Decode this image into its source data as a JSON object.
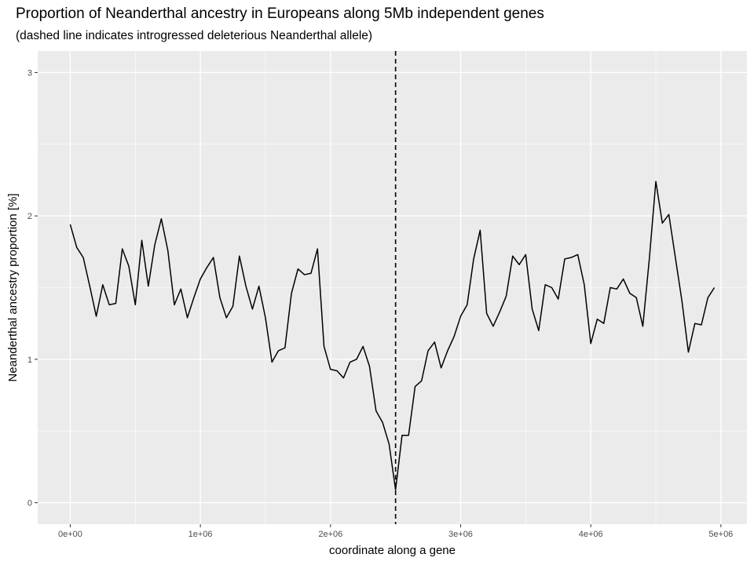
{
  "chart_data": {
    "type": "line",
    "title": "Proportion of Neanderthal ancestry in Europeans along 5Mb independent genes",
    "subtitle": "(dashed line indicates introgressed deleterious Neanderthal allele)",
    "xlabel": "coordinate along a gene",
    "ylabel": "Neanderthal ancestry proportion [%]",
    "xlim": [
      -250000,
      5200000
    ],
    "ylim": [
      -0.15,
      3.15
    ],
    "x_ticks": [
      0,
      1000000,
      2000000,
      3000000,
      4000000,
      5000000
    ],
    "x_tick_labels": [
      "0e+00",
      "1e+06",
      "2e+06",
      "3e+06",
      "4e+06",
      "5e+06"
    ],
    "y_ticks": [
      0,
      1,
      2,
      3
    ],
    "y_tick_labels": [
      "0",
      "1",
      "2",
      "3"
    ],
    "vline": {
      "x": 2500000,
      "style": "dashed"
    },
    "grid": true,
    "background": "#ebebeb",
    "series": [
      {
        "color": "#000000",
        "x": [
          0,
          50000,
          100000,
          150000,
          200000,
          250000,
          300000,
          350000,
          400000,
          450000,
          500000,
          550000,
          600000,
          650000,
          700000,
          750000,
          800000,
          850000,
          900000,
          950000,
          1000000,
          1050000,
          1100000,
          1150000,
          1200000,
          1250000,
          1300000,
          1350000,
          1400000,
          1450000,
          1500000,
          1550000,
          1600000,
          1650000,
          1700000,
          1750000,
          1800000,
          1850000,
          1900000,
          1950000,
          2000000,
          2050000,
          2100000,
          2150000,
          2200000,
          2250000,
          2300000,
          2350000,
          2400000,
          2450000,
          2500000,
          2550000,
          2600000,
          2650000,
          2700000,
          2750000,
          2800000,
          2850000,
          2900000,
          2950000,
          3000000,
          3050000,
          3100000,
          3150000,
          3200000,
          3250000,
          3300000,
          3350000,
          3400000,
          3450000,
          3500000,
          3550000,
          3600000,
          3650000,
          3700000,
          3750000,
          3800000,
          3850000,
          3900000,
          3950000,
          4000000,
          4050000,
          4100000,
          4150000,
          4200000,
          4250000,
          4300000,
          4350000,
          4400000,
          4450000,
          4500000,
          4550000,
          4600000,
          4650000,
          4700000,
          4750000,
          4800000,
          4850000,
          4900000,
          4950000
        ],
        "y": [
          1.94,
          1.78,
          1.71,
          1.51,
          1.3,
          1.52,
          1.38,
          1.39,
          1.77,
          1.65,
          1.38,
          1.83,
          1.51,
          1.8,
          1.98,
          1.76,
          1.38,
          1.49,
          1.29,
          1.43,
          1.56,
          1.64,
          1.71,
          1.43,
          1.29,
          1.37,
          1.72,
          1.51,
          1.35,
          1.51,
          1.29,
          0.98,
          1.06,
          1.08,
          1.46,
          1.63,
          1.59,
          1.6,
          1.77,
          1.09,
          0.93,
          0.92,
          0.87,
          0.98,
          1.0,
          1.09,
          0.95,
          0.64,
          0.56,
          0.41,
          0.09,
          0.47,
          0.47,
          0.81,
          0.85,
          1.06,
          1.12,
          0.94,
          1.06,
          1.16,
          1.3,
          1.38,
          1.7,
          1.9,
          1.32,
          1.23,
          1.33,
          1.44,
          1.72,
          1.66,
          1.73,
          1.35,
          1.2,
          1.52,
          1.5,
          1.42,
          1.7,
          1.71,
          1.73,
          1.52,
          1.11,
          1.28,
          1.25,
          1.5,
          1.49,
          1.56,
          1.46,
          1.43,
          1.23,
          1.7,
          2.24,
          1.95,
          2.01,
          1.71,
          1.41,
          1.05,
          1.25,
          1.24,
          1.43,
          1.5
        ]
      }
    ]
  }
}
